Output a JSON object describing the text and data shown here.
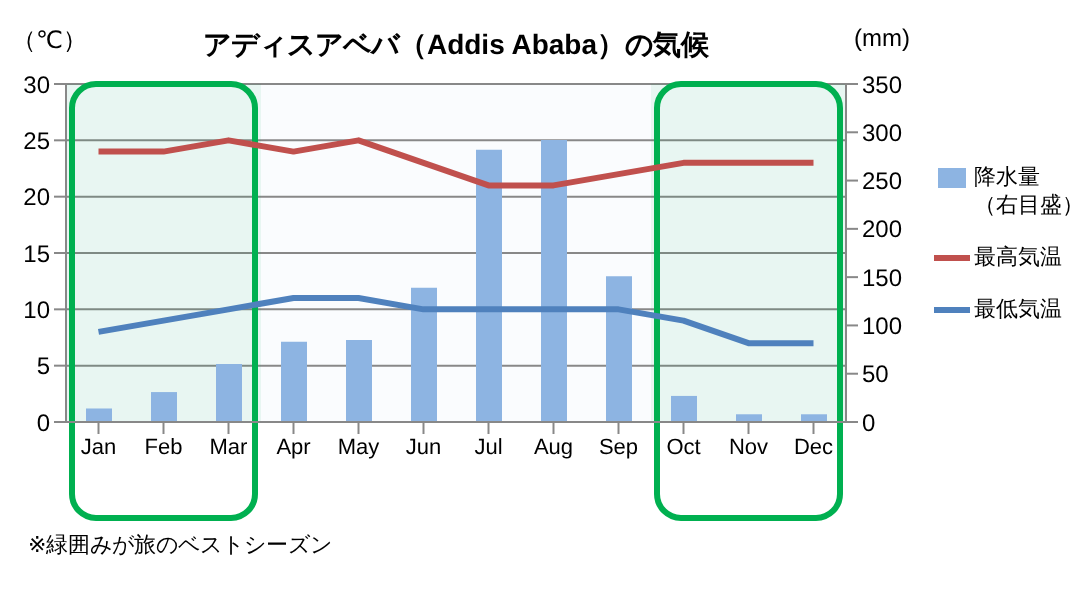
{
  "chart_data": {
    "type": "bar",
    "title": "アディスアベバ（Addis Ababa）の気候",
    "ylabel": "（℃）",
    "y2label": "(mm)",
    "categories": [
      "Jan",
      "Feb",
      "Mar",
      "Apr",
      "May",
      "Jun",
      "Jul",
      "Aug",
      "Sep",
      "Oct",
      "Nov",
      "Dec"
    ],
    "series": [
      {
        "name": "降水量（右目盛）",
        "axis": "y2",
        "color": "#8db4e2",
        "values": [
          14,
          31,
          60,
          83,
          85,
          139,
          282,
          292,
          151,
          27,
          8,
          8
        ]
      },
      {
        "name": "最高気温",
        "type": "line",
        "color": "#c0504d",
        "values": [
          24,
          24,
          25,
          24,
          25,
          23,
          21,
          21,
          22,
          23,
          23,
          23
        ]
      },
      {
        "name": "最低気温",
        "type": "line",
        "color": "#4f81bd",
        "values": [
          8,
          9,
          10,
          11,
          11,
          10,
          10,
          10,
          10,
          9,
          7,
          7
        ]
      }
    ],
    "ylim": [
      0,
      30
    ],
    "yticks": [
      0,
      5,
      10,
      15,
      20,
      25,
      30
    ],
    "y2lim": [
      0,
      350
    ],
    "y2ticks": [
      0,
      50,
      100,
      150,
      200,
      250,
      300,
      350
    ],
    "grid": "y",
    "legend": "right",
    "marker": "none",
    "line_style": "solid",
    "bands": [
      {
        "axis": "x",
        "from": "Jan",
        "to": "Mar",
        "color": "#00b050"
      },
      {
        "axis": "x",
        "from": "Oct",
        "to": "Dec",
        "color": "#00b050"
      }
    ],
    "annotations": [
      "※緑囲みが旅のベストシーズン"
    ]
  }
}
